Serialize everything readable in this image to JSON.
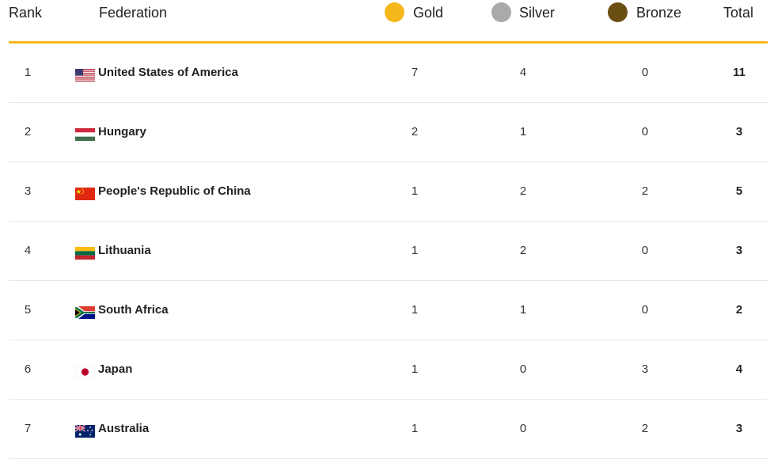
{
  "header": {
    "rank": "Rank",
    "federation": "Federation",
    "gold": "Gold",
    "silver": "Silver",
    "bronze": "Bronze",
    "total": "Total"
  },
  "colors": {
    "gold": "#f5b81c",
    "silver": "#aaaaaa",
    "bronze": "#6b4e12",
    "accent": "#f5b81c"
  },
  "rows": [
    {
      "rank": "1",
      "federation": "United States of America",
      "flag": "usa-flag-icon",
      "gold": "7",
      "silver": "4",
      "bronze": "0",
      "total": "11"
    },
    {
      "rank": "2",
      "federation": "Hungary",
      "flag": "hungary-flag-icon",
      "gold": "2",
      "silver": "1",
      "bronze": "0",
      "total": "3"
    },
    {
      "rank": "3",
      "federation": "People's Republic of China",
      "flag": "china-flag-icon",
      "gold": "1",
      "silver": "2",
      "bronze": "2",
      "total": "5"
    },
    {
      "rank": "4",
      "federation": "Lithuania",
      "flag": "lithuania-flag-icon",
      "gold": "1",
      "silver": "2",
      "bronze": "0",
      "total": "3"
    },
    {
      "rank": "5",
      "federation": "South Africa",
      "flag": "south-africa-flag-icon",
      "gold": "1",
      "silver": "1",
      "bronze": "0",
      "total": "2"
    },
    {
      "rank": "6",
      "federation": "Japan",
      "flag": "japan-flag-icon",
      "gold": "1",
      "silver": "0",
      "bronze": "3",
      "total": "4"
    },
    {
      "rank": "7",
      "federation": "Australia",
      "flag": "australia-flag-icon",
      "gold": "1",
      "silver": "0",
      "bronze": "2",
      "total": "3"
    }
  ]
}
